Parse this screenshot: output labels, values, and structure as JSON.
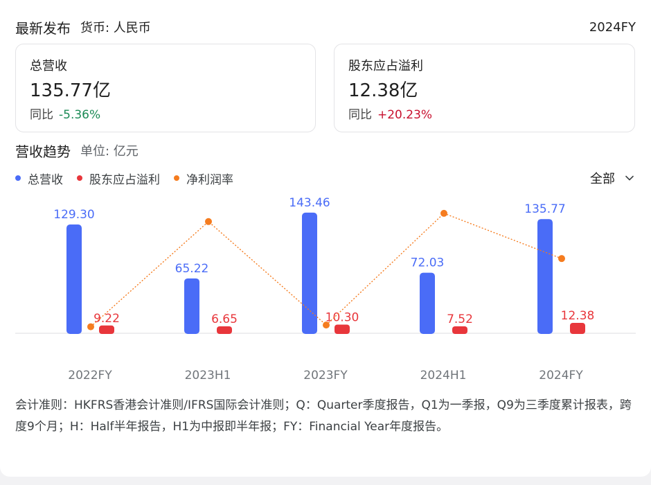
{
  "header": {
    "title": "最新发布",
    "currency": "货币: 人民币",
    "period": "2024FY"
  },
  "cards": [
    {
      "label": "总营收",
      "value": "135.77亿",
      "yoy_label": "同比",
      "yoy_value": "-5.36%"
    },
    {
      "label": "股东应占溢利",
      "value": "12.38亿",
      "yoy_label": "同比",
      "yoy_value": "+20.23%"
    }
  ],
  "trend": {
    "title": "营收趋势",
    "unit": "单位: 亿元",
    "filter_label": "全部"
  },
  "colors": {
    "revenue": "#4a6cf7",
    "profit": "#e8363b",
    "margin": "#f57c1f",
    "negative": "#1b8a55",
    "positive": "#c8102e"
  },
  "icons": {
    "filter": "chevron-down-icon"
  },
  "chart_data": {
    "type": "bar",
    "categories": [
      "2022FY",
      "2023H1",
      "2023FY",
      "2024H1",
      "2024FY"
    ],
    "series": [
      {
        "name": "总营收",
        "type": "bar",
        "values": [
          129.3,
          65.22,
          143.46,
          72.03,
          135.77
        ],
        "labels": [
          "129.30",
          "65.22",
          "143.46",
          "72.03",
          "135.77"
        ]
      },
      {
        "name": "股东应占溢利",
        "type": "bar",
        "values": [
          9.22,
          6.65,
          10.3,
          7.52,
          12.38
        ],
        "labels": [
          "9.22",
          "6.65",
          "10.30",
          "7.52",
          "12.38"
        ]
      },
      {
        "name": "净利润率",
        "type": "line",
        "values": [
          7.13,
          10.2,
          7.18,
          10.44,
          9.12
        ]
      }
    ],
    "ylim": [
      0,
      145
    ],
    "margin_ylim": [
      7.0,
      10.6
    ],
    "legend_position": "top-left",
    "grid": false
  },
  "footnote": "会计准则：HKFRS香港会计准则/IFRS国际会计准则；Q：Quarter季度报告，Q1为一季报，Q9为三季度累计报表，跨度9个月；H：Half半年报告，H1为中报即半年报；FY：Financial Year年度报告。"
}
